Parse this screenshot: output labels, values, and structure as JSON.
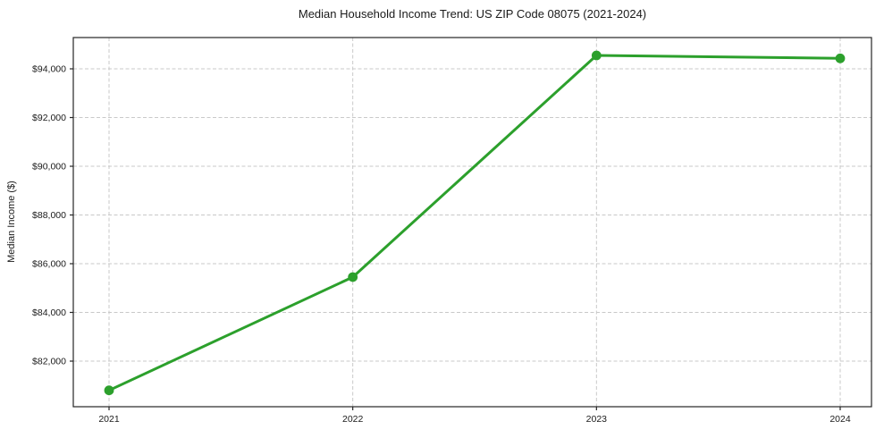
{
  "chart_data": {
    "type": "line",
    "title": "Median Household Income Trend: US ZIP Code 08075 (2021-2024)",
    "xlabel": "",
    "ylabel": "Median Income ($)",
    "x": [
      2021,
      2022,
      2023,
      2024
    ],
    "x_tick_labels": [
      "2021",
      "2022",
      "2023",
      "2024"
    ],
    "series": [
      {
        "name": "Median Household Income",
        "values": [
          80800,
          85450,
          94550,
          94430
        ]
      }
    ],
    "y_ticks": [
      82000,
      84000,
      86000,
      88000,
      90000,
      92000,
      94000
    ],
    "y_tick_labels": [
      "$82,000",
      "$84,000",
      "$86,000",
      "$88,000",
      "$90,000",
      "$92,000",
      "$94,000"
    ],
    "xlim": [
      2020.85,
      2024.15
    ],
    "ylim": [
      80130,
      95280
    ],
    "grid": true,
    "grid_style": "dashed",
    "legend": false,
    "colors": {
      "line": "#2ca02c",
      "marker": "#2ca02c",
      "grid": "#c9c9c9",
      "axis": "#262626",
      "background": "#ffffff"
    }
  }
}
